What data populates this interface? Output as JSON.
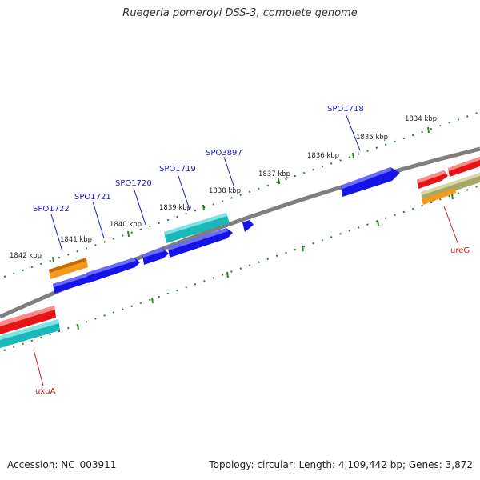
{
  "title": "Ruegeria pomeroyi DSS-3, complete genome",
  "accession": "Accession: NC_003911",
  "summary": "Topology: circular; Length: 4,109,442 bp; Genes: 3,872",
  "colors": {
    "backbone": "#808080",
    "ticks": "#2e7d2e",
    "gene_label_upper": "#1a1acc",
    "gene_label_lower": "#cc1a1a",
    "blue": "#1414e6",
    "cyan": "#1ab8b8",
    "orange": "#f29a1a",
    "red": "#e61414",
    "olive": "#a8a866"
  },
  "kbp_labels": [
    "1834 kbp",
    "1835 kbp",
    "1836 kbp",
    "1837 kbp",
    "1838 kbp",
    "1839 kbp",
    "1840 kbp",
    "1841 kbp",
    "1842 kbp"
  ],
  "gene_labels_upper": [
    "SPO1718",
    "SPO3897",
    "SPO1719",
    "SPO1720",
    "SPO1721",
    "SPO1722"
  ],
  "gene_labels_lower": [
    "ureG",
    "uxuA"
  ]
}
